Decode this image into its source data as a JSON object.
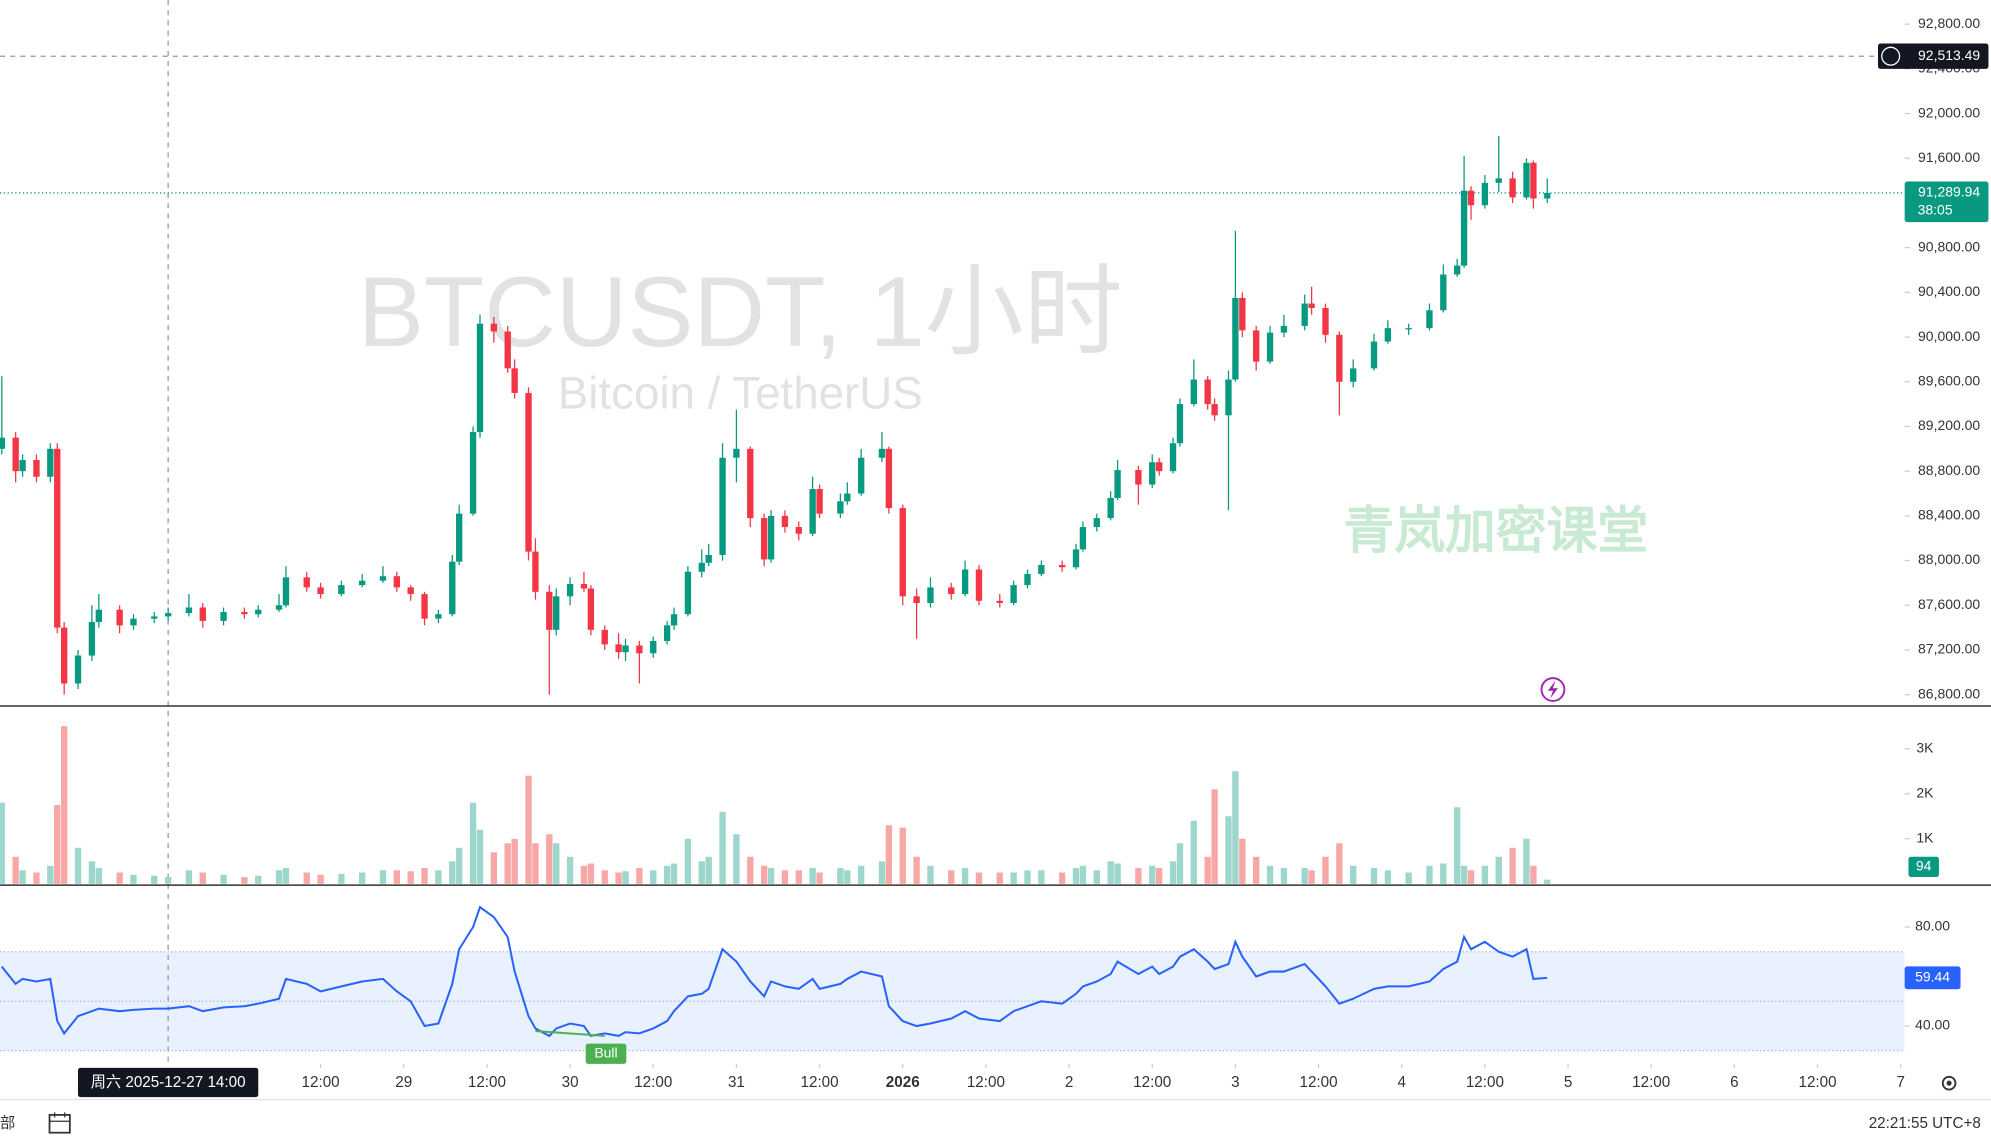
{
  "chart_data": {
    "type": "candlestick",
    "title": "BTCUSDT, 1小时",
    "subtitle": "Bitcoin / TetherUS",
    "watermark": "青岚加密课堂",
    "up_color": "#089981",
    "down_color": "#f23645",
    "x": [
      -10,
      -8,
      -7,
      -5,
      -3,
      -2,
      -1,
      1,
      3,
      4,
      7,
      9,
      12,
      14,
      17,
      19,
      22,
      25,
      27,
      30,
      31,
      34,
      36,
      39,
      42,
      45,
      47,
      49,
      51,
      53,
      55,
      56,
      58,
      59,
      61,
      63,
      64,
      66,
      67,
      69,
      70,
      72,
      74,
      75,
      77,
      79,
      80,
      82,
      84,
      86,
      87,
      89,
      91,
      92,
      94,
      96,
      98,
      100,
      101,
      103,
      105,
      107,
      108,
      111,
      112,
      114,
      117,
      118,
      120,
      122,
      124,
      127,
      129,
      131,
      134,
      136,
      138,
      140,
      143,
      145,
      146,
      148,
      150,
      151,
      154,
      156,
      157,
      159,
      160,
      162,
      164,
      165,
      167,
      168,
      169,
      171,
      173,
      175,
      178,
      179,
      181,
      183,
      185,
      188,
      190,
      193,
      196,
      198,
      200,
      201,
      202,
      204,
      206,
      208,
      210,
      211,
      213
    ],
    "xlim": [
      -10.26,
      264.57
    ],
    "xticks": [
      {
        "value": 36,
        "label": "12:00"
      },
      {
        "value": 48,
        "label": "29"
      },
      {
        "value": 60,
        "label": "12:00"
      },
      {
        "value": 72,
        "label": "30"
      },
      {
        "value": 84,
        "label": "12:00"
      },
      {
        "value": 96,
        "label": "31"
      },
      {
        "value": 108,
        "label": "12:00"
      },
      {
        "value": 120,
        "label": "2026"
      },
      {
        "value": 132,
        "label": "12:00"
      },
      {
        "value": 144,
        "label": "2"
      },
      {
        "value": 156,
        "label": "12:00"
      },
      {
        "value": 168,
        "label": "3"
      },
      {
        "value": 180,
        "label": "12:00"
      },
      {
        "value": 192,
        "label": "4"
      },
      {
        "value": 204,
        "label": "12:00"
      },
      {
        "value": 216,
        "label": "5"
      },
      {
        "value": 228,
        "label": "12:00"
      },
      {
        "value": 240,
        "label": "6"
      },
      {
        "value": 252,
        "label": "12:00"
      },
      {
        "value": 264,
        "label": "7"
      }
    ],
    "candles": [
      [
        89000,
        89650,
        88950,
        89100
      ],
      [
        89100,
        89150,
        88700,
        88800
      ],
      [
        88800,
        88950,
        88750,
        88900
      ],
      [
        88900,
        88950,
        88700,
        88750
      ],
      [
        88750,
        89050,
        88700,
        89000
      ],
      [
        89000,
        89050,
        87350,
        87400
      ],
      [
        87400,
        87450,
        86800,
        86900
      ],
      [
        86900,
        87200,
        86850,
        87150
      ],
      [
        87150,
        87600,
        87100,
        87450
      ],
      [
        87450,
        87700,
        87400,
        87560
      ],
      [
        87560,
        87600,
        87350,
        87420
      ],
      [
        87420,
        87520,
        87380,
        87480
      ],
      [
        87480,
        87540,
        87440,
        87500
      ],
      [
        87500,
        87580,
        87460,
        87530
      ],
      [
        87530,
        87700,
        87500,
        87580
      ],
      [
        87580,
        87620,
        87400,
        87460
      ],
      [
        87460,
        87580,
        87420,
        87540
      ],
      [
        87540,
        87580,
        87480,
        87520
      ],
      [
        87520,
        87600,
        87490,
        87560
      ],
      [
        87560,
        87700,
        87540,
        87600
      ],
      [
        87600,
        87950,
        87580,
        87850
      ],
      [
        87850,
        87900,
        87720,
        87760
      ],
      [
        87760,
        87800,
        87660,
        87700
      ],
      [
        87700,
        87820,
        87680,
        87780
      ],
      [
        87780,
        87880,
        87760,
        87820
      ],
      [
        87820,
        87950,
        87800,
        87860
      ],
      [
        87860,
        87900,
        87720,
        87760
      ],
      [
        87760,
        87780,
        87640,
        87700
      ],
      [
        87700,
        87720,
        87420,
        87480
      ],
      [
        87480,
        87560,
        87440,
        87520
      ],
      [
        87520,
        88050,
        87500,
        87990
      ],
      [
        87990,
        88500,
        87960,
        88420
      ],
      [
        88420,
        89200,
        88400,
        89150
      ],
      [
        89150,
        90200,
        89100,
        90120
      ],
      [
        90120,
        90180,
        89950,
        90050
      ],
      [
        90050,
        90100,
        89680,
        89720
      ],
      [
        89720,
        89800,
        89450,
        89500
      ],
      [
        89500,
        89550,
        88000,
        88080
      ],
      [
        88080,
        88200,
        87650,
        87720
      ],
      [
        87720,
        87780,
        86800,
        87380
      ],
      [
        87380,
        87750,
        87330,
        87680
      ],
      [
        87680,
        87850,
        87600,
        87790
      ],
      [
        87790,
        87900,
        87720,
        87750
      ],
      [
        87750,
        87780,
        87330,
        87380
      ],
      [
        87380,
        87420,
        87200,
        87250
      ],
      [
        87250,
        87350,
        87120,
        87180
      ],
      [
        87180,
        87300,
        87100,
        87240
      ],
      [
        87240,
        87280,
        86900,
        87170
      ],
      [
        87170,
        87320,
        87130,
        87280
      ],
      [
        87280,
        87460,
        87250,
        87420
      ],
      [
        87420,
        87580,
        87380,
        87520
      ],
      [
        87520,
        87950,
        87500,
        87900
      ],
      [
        87900,
        88100,
        87850,
        87980
      ],
      [
        87980,
        88150,
        87950,
        88050
      ],
      [
        88050,
        89050,
        88000,
        88920
      ],
      [
        88920,
        89350,
        88700,
        89000
      ],
      [
        89000,
        89020,
        88300,
        88380
      ],
      [
        88380,
        88420,
        87950,
        88010
      ],
      [
        88010,
        88450,
        87980,
        88400
      ],
      [
        88400,
        88450,
        88250,
        88300
      ],
      [
        88300,
        88350,
        88180,
        88240
      ],
      [
        88240,
        88750,
        88220,
        88640
      ],
      [
        88640,
        88680,
        88380,
        88420
      ],
      [
        88420,
        88600,
        88380,
        88530
      ],
      [
        88530,
        88700,
        88500,
        88600
      ],
      [
        88600,
        89000,
        88580,
        88920
      ],
      [
        88920,
        89150,
        88880,
        89000
      ],
      [
        89000,
        89020,
        88420,
        88470
      ],
      [
        88470,
        88500,
        87600,
        87680
      ],
      [
        87680,
        87750,
        87300,
        87620
      ],
      [
        87620,
        87850,
        87580,
        87760
      ],
      [
        87760,
        87800,
        87650,
        87700
      ],
      [
        87700,
        88000,
        87680,
        87920
      ],
      [
        87920,
        87960,
        87600,
        87640
      ],
      [
        87640,
        87700,
        87580,
        87620
      ],
      [
        87620,
        87820,
        87600,
        87780
      ],
      [
        87780,
        87920,
        87750,
        87880
      ],
      [
        87880,
        88000,
        87860,
        87960
      ],
      [
        87960,
        88000,
        87900,
        87940
      ],
      [
        87940,
        88150,
        87920,
        88100
      ],
      [
        88100,
        88350,
        88080,
        88300
      ],
      [
        88300,
        88420,
        88260,
        88380
      ],
      [
        88380,
        88620,
        88360,
        88560
      ],
      [
        88560,
        88900,
        88540,
        88810
      ],
      [
        88810,
        88850,
        88500,
        88680
      ],
      [
        88680,
        88950,
        88650,
        88880
      ],
      [
        88880,
        88920,
        88760,
        88800
      ],
      [
        88800,
        89100,
        88780,
        89050
      ],
      [
        89050,
        89450,
        89020,
        89400
      ],
      [
        89400,
        89800,
        89380,
        89620
      ],
      [
        89620,
        89650,
        89350,
        89400
      ],
      [
        89400,
        89450,
        89250,
        89300
      ],
      [
        89300,
        89700,
        88450,
        89620
      ],
      [
        89620,
        90950,
        89600,
        90350
      ],
      [
        90350,
        90400,
        90000,
        90060
      ],
      [
        90060,
        90100,
        89700,
        89780
      ],
      [
        89780,
        90100,
        89760,
        90040
      ],
      [
        90040,
        90200,
        90000,
        90100
      ],
      [
        90100,
        90380,
        90060,
        90300
      ],
      [
        90300,
        90450,
        90200,
        90260
      ],
      [
        90260,
        90300,
        89950,
        90020
      ],
      [
        90020,
        90050,
        89300,
        89600
      ],
      [
        89600,
        89800,
        89550,
        89720
      ],
      [
        89720,
        90030,
        89700,
        89960
      ],
      [
        89960,
        90150,
        89940,
        90080
      ],
      [
        90080,
        90120,
        90020,
        90080
      ],
      [
        90080,
        90300,
        90060,
        90240
      ],
      [
        90240,
        90650,
        90220,
        90560
      ],
      [
        90560,
        90700,
        90540,
        90640
      ],
      [
        90640,
        91620,
        90620,
        91310
      ],
      [
        91310,
        91350,
        91050,
        91180
      ],
      [
        91180,
        91450,
        91150,
        91380
      ],
      [
        91380,
        91800,
        91300,
        91420
      ],
      [
        91420,
        91480,
        91200,
        91250
      ],
      [
        91250,
        91600,
        91230,
        91560
      ],
      [
        91560,
        91580,
        91150,
        91240
      ],
      [
        91240,
        91420,
        91200,
        91289.94
      ]
    ],
    "ylim": [
      86698,
      93016
    ],
    "yticks": [
      {
        "value": 86800,
        "label": "86,800.00"
      },
      {
        "value": 87200,
        "label": "87,200.00"
      },
      {
        "value": 87600,
        "label": "87,600.00"
      },
      {
        "value": 88000,
        "label": "88,000.00"
      },
      {
        "value": 88400,
        "label": "88,400.00"
      },
      {
        "value": 88800,
        "label": "88,800.00"
      },
      {
        "value": 89200,
        "label": "89,200.00"
      },
      {
        "value": 89600,
        "label": "89,600.00"
      },
      {
        "value": 90000,
        "label": "90,000.00"
      },
      {
        "value": 90400,
        "label": "90,400.00"
      },
      {
        "value": 90800,
        "label": "90,800.00"
      },
      {
        "value": 91200,
        "label": "91,200.00"
      },
      {
        "value": 91600,
        "label": "91,600.00"
      },
      {
        "value": 92000,
        "label": "92,000.00"
      },
      {
        "value": 92400,
        "label": "92,400.00"
      },
      {
        "value": 92800,
        "label": "92,800.00"
      }
    ],
    "last_price": {
      "value": 91289.94,
      "label": "91,289.94",
      "countdown": "38:05"
    },
    "crosshair": {
      "x": 14,
      "x_label": "周六 2025-12-27  14:00",
      "price": 92513.49,
      "price_label": "92,513.49"
    },
    "volume": {
      "values": [
        1800,
        600,
        300,
        250,
        400,
        1750,
        3500,
        800,
        500,
        350,
        250,
        200,
        180,
        150,
        300,
        250,
        200,
        150,
        180,
        300,
        350,
        250,
        200,
        220,
        250,
        300,
        300,
        280,
        350,
        300,
        500,
        800,
        1800,
        1200,
        700,
        900,
        1000,
        2400,
        900,
        1100,
        900,
        600,
        400,
        450,
        300,
        250,
        280,
        350,
        300,
        400,
        450,
        1000,
        500,
        600,
        1600,
        1100,
        600,
        400,
        350,
        300,
        300,
        350,
        250,
        350,
        300,
        400,
        500,
        1300,
        1250,
        600,
        400,
        300,
        350,
        250,
        250,
        250,
        300,
        300,
        250,
        350,
        400,
        300,
        500,
        450,
        350,
        400,
        350,
        500,
        900,
        1400,
        600,
        2100,
        1500,
        2500,
        1000,
        600,
        400,
        350,
        350,
        300,
        600,
        900,
        400,
        350,
        300,
        250,
        400,
        450,
        1700,
        400,
        300,
        400,
        600,
        800,
        1000,
        400,
        94
      ],
      "ylim": [
        0,
        3890
      ],
      "yticks": [
        {
          "value": 1000,
          "label": "1K"
        },
        {
          "value": 2000,
          "label": "2K"
        },
        {
          "value": 3000,
          "label": "3K"
        }
      ]
    },
    "rsi": {
      "values": [
        64,
        57,
        59,
        58,
        59,
        42,
        37,
        44,
        46,
        47,
        46,
        46.5,
        47,
        47,
        48,
        46,
        47.5,
        48,
        49,
        51,
        59,
        57,
        54,
        56,
        58,
        59,
        54,
        50,
        40,
        41,
        57,
        71,
        80,
        88,
        84,
        76,
        62,
        44,
        39,
        36,
        39,
        41,
        40,
        36,
        37,
        36,
        37.5,
        37,
        39,
        42,
        46,
        52,
        53,
        55,
        71,
        66,
        58,
        52,
        58,
        56,
        55,
        59,
        55,
        57,
        59,
        62,
        60,
        48,
        42,
        40,
        41,
        43,
        46,
        43,
        42,
        46,
        48,
        50,
        49,
        53,
        56,
        58,
        61,
        66,
        61,
        64,
        61,
        64,
        68,
        71,
        66,
        63,
        65,
        74,
        68,
        60,
        62,
        62,
        65,
        62,
        56,
        49,
        51,
        55,
        56,
        56,
        58,
        63,
        66,
        76,
        71,
        74,
        70,
        68,
        71,
        59,
        59.44
      ],
      "color": "#2962ff",
      "ylim": [
        24.6,
        96.4
      ],
      "yticks": [
        {
          "value": 40,
          "label": "40.00"
        },
        {
          "value": 80,
          "label": "80.00"
        }
      ],
      "band": [
        30,
        70
      ],
      "mid": 50,
      "annotation": "Bull"
    },
    "footer": {
      "left": "部",
      "clock": "22:21:55 UTC+8"
    }
  }
}
